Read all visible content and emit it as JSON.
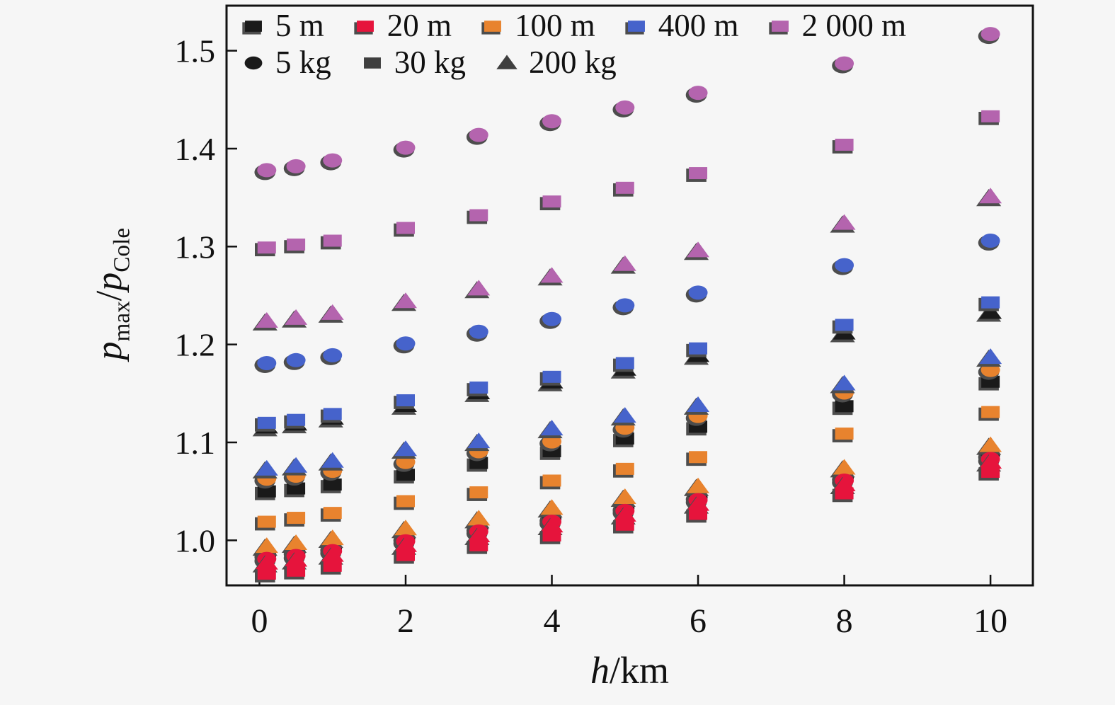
{
  "figure": {
    "background": "#f6f6f6",
    "frame_color": "#111111",
    "shadow_color": "#4d4d4d"
  },
  "chart_data": {
    "type": "scatter",
    "title": "",
    "xlabel": "h/km",
    "xlabel_parts": {
      "variable": "h",
      "unit": "/km"
    },
    "ylabel": "p_max/p_Cole",
    "ylabel_parts": {
      "p1": "p",
      "sub1": "max",
      "slash": "/",
      "p2": "p",
      "sub2": "Cole"
    },
    "xlim": [
      -0.45,
      10.58
    ],
    "ylim": [
      0.954,
      1.546
    ],
    "grid": false,
    "x_ticks": {
      "values": [
        0,
        2,
        4,
        6,
        8,
        10
      ],
      "labels": [
        "0",
        "2",
        "4",
        "6",
        "8",
        "10"
      ]
    },
    "y_ticks": {
      "values": [
        1.0,
        1.1,
        1.2,
        1.3,
        1.4,
        1.5
      ],
      "labels": [
        "1.0",
        "1.1",
        "1.2",
        "1.3",
        "1.4",
        "1.5"
      ]
    },
    "legend": {
      "position": "top-left inside",
      "row1": [
        {
          "label": "5 m",
          "shape": "square",
          "color": "#1a1a1a",
          "shadow": true
        },
        {
          "label": "20 m",
          "shape": "square",
          "color": "#e6143c",
          "shadow": true
        },
        {
          "label": "100 m",
          "shape": "square",
          "color": "#e8832e",
          "shadow": true
        },
        {
          "label": "400 m",
          "shape": "square",
          "color": "#4663cb",
          "shadow": true
        },
        {
          "label": "2 000 m",
          "shape": "square",
          "color": "#b464ae",
          "shadow": true
        }
      ],
      "row2": [
        {
          "label": "5 kg",
          "shape": "circle",
          "color": "#1a1a1a",
          "shadow": false
        },
        {
          "label": "30 kg",
          "shape": "square",
          "color": "#3f3f3f",
          "shadow": false
        },
        {
          "label": "200 kg",
          "shape": "triangle",
          "color": "#3f3f3f",
          "shadow": false
        }
      ]
    },
    "x": [
      0.1,
      0.5,
      1,
      2,
      3,
      4,
      5,
      6,
      8,
      10
    ],
    "series": [
      {
        "id": "5m-30kg",
        "distance": "5 m",
        "mass": "30 kg",
        "shape": "square",
        "color": "#1a1a1a",
        "values": [
          1.05,
          1.053,
          1.057,
          1.067,
          1.079,
          1.091,
          1.104,
          1.116,
          1.137,
          1.162
        ]
      },
      {
        "id": "5m-200kg",
        "distance": "5 m",
        "mass": "200 kg",
        "shape": "triangle",
        "color": "#1a1a1a",
        "values": [
          1.116,
          1.119,
          1.125,
          1.138,
          1.151,
          1.162,
          1.175,
          1.189,
          1.212,
          1.233
        ]
      },
      {
        "id": "5m-5kg",
        "distance": "5 m",
        "mass": "5 kg",
        "shape": "circle",
        "color": "#1a1a1a",
        "values": [
          0.985,
          0.988,
          0.992,
          1.002,
          1.012,
          1.022,
          1.033,
          1.044,
          1.064,
          1.087
        ]
      },
      {
        "id": "100m-5kg",
        "distance": "100 m",
        "mass": "5 kg",
        "shape": "circle",
        "color": "#e8832e",
        "values": [
          1.063,
          1.066,
          1.071,
          1.08,
          1.091,
          1.101,
          1.115,
          1.127,
          1.151,
          1.174
        ]
      },
      {
        "id": "100m-30kg",
        "distance": "100 m",
        "mass": "30 kg",
        "shape": "square",
        "color": "#e8832e",
        "values": [
          1.019,
          1.023,
          1.028,
          1.04,
          1.049,
          1.061,
          1.073,
          1.085,
          1.109,
          1.131
        ]
      },
      {
        "id": "100m-200kg",
        "distance": "100 m",
        "mass": "200 kg",
        "shape": "triangle",
        "color": "#e8832e",
        "values": [
          0.994,
          0.997,
          1.002,
          1.012,
          1.022,
          1.033,
          1.044,
          1.055,
          1.074,
          1.097
        ]
      },
      {
        "id": "20m-5kg",
        "distance": "20 m",
        "mass": "5 kg",
        "shape": "circle",
        "color": "#e6143c",
        "values": [
          0.981,
          0.984,
          0.989,
          0.999,
          1.009,
          1.019,
          1.03,
          1.041,
          1.061,
          1.083
        ]
      },
      {
        "id": "20m-200kg",
        "distance": "20 m",
        "mass": "200 kg",
        "shape": "triangle",
        "color": "#e6143c",
        "values": [
          0.977,
          0.98,
          0.985,
          0.995,
          1.005,
          1.015,
          1.026,
          1.037,
          1.057,
          1.08
        ]
      },
      {
        "id": "20m-30kg",
        "distance": "20 m",
        "mass": "30 kg",
        "shape": "square",
        "color": "#e6143c",
        "values": [
          0.966,
          0.969,
          0.974,
          0.985,
          0.995,
          1.005,
          1.016,
          1.027,
          1.048,
          1.07
        ]
      },
      {
        "id": "400m-200kg",
        "distance": "400 m",
        "mass": "200 kg",
        "shape": "triangle",
        "color": "#4663cb",
        "values": [
          1.073,
          1.076,
          1.081,
          1.093,
          1.101,
          1.114,
          1.127,
          1.138,
          1.16,
          1.187
        ]
      },
      {
        "id": "400m-30kg",
        "distance": "400 m",
        "mass": "30 kg",
        "shape": "square",
        "color": "#4663cb",
        "values": [
          1.12,
          1.123,
          1.129,
          1.143,
          1.156,
          1.167,
          1.181,
          1.196,
          1.22,
          1.243
        ]
      },
      {
        "id": "400m-5kg",
        "distance": "400 m",
        "mass": "5 kg",
        "shape": "circle",
        "color": "#4663cb",
        "values": [
          1.181,
          1.184,
          1.189,
          1.201,
          1.213,
          1.226,
          1.24,
          1.253,
          1.281,
          1.306
        ]
      },
      {
        "id": "2000m-200kg",
        "distance": "2 000 m",
        "mass": "200 kg",
        "shape": "triangle",
        "color": "#b464ae",
        "values": [
          1.224,
          1.227,
          1.232,
          1.244,
          1.257,
          1.27,
          1.282,
          1.296,
          1.324,
          1.351
        ]
      },
      {
        "id": "2000m-30kg",
        "distance": "2 000 m",
        "mass": "30 kg",
        "shape": "square",
        "color": "#b464ae",
        "values": [
          1.299,
          1.302,
          1.306,
          1.319,
          1.332,
          1.346,
          1.36,
          1.375,
          1.404,
          1.433
        ]
      },
      {
        "id": "2000m-5kg",
        "distance": "2 000 m",
        "mass": "5 kg",
        "shape": "circle",
        "color": "#b464ae",
        "values": [
          1.378,
          1.382,
          1.388,
          1.401,
          1.414,
          1.428,
          1.442,
          1.457,
          1.487,
          1.517
        ]
      }
    ]
  }
}
